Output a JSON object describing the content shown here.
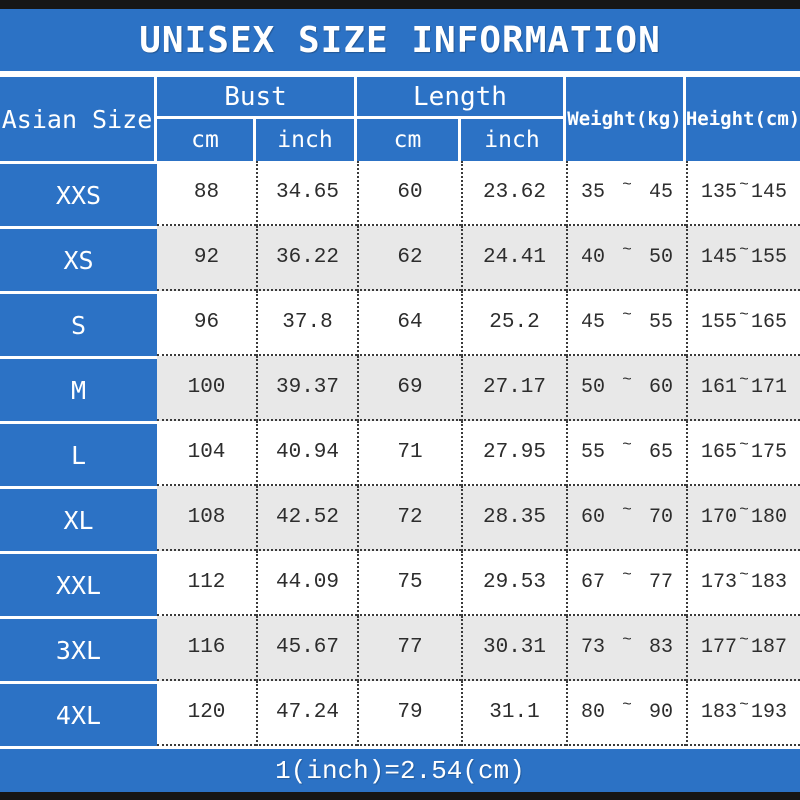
{
  "title": "UNISEX SIZE INFORMATION",
  "footer_note": "1(inch)=2.54(cm)",
  "colors": {
    "blue": "#2c72c5",
    "alt_row_gray": "#e8e8e8",
    "frame_bar_black": "#161616",
    "text_dark": "#2d2d2d",
    "header_text_white": "#ffffff"
  },
  "header": {
    "size_col": "Asian Size",
    "bust": "Bust",
    "length": "Length",
    "cm": "cm",
    "inch": "inch",
    "weight": "Weight(kg)",
    "height": "Height(cm)",
    "tilde": "~"
  },
  "rows": [
    {
      "size": "XXS",
      "bust_cm": "88",
      "bust_inch": "34.65",
      "length_cm": "60",
      "length_inch": "23.62",
      "weight_min": "35",
      "weight_max": "45",
      "height_min": "135",
      "height_max": "145"
    },
    {
      "size": "XS",
      "bust_cm": "92",
      "bust_inch": "36.22",
      "length_cm": "62",
      "length_inch": "24.41",
      "weight_min": "40",
      "weight_max": "50",
      "height_min": "145",
      "height_max": "155"
    },
    {
      "size": "S",
      "bust_cm": "96",
      "bust_inch": "37.8",
      "length_cm": "64",
      "length_inch": "25.2",
      "weight_min": "45",
      "weight_max": "55",
      "height_min": "155",
      "height_max": "165"
    },
    {
      "size": "M",
      "bust_cm": "100",
      "bust_inch": "39.37",
      "length_cm": "69",
      "length_inch": "27.17",
      "weight_min": "50",
      "weight_max": "60",
      "height_min": "161",
      "height_max": "171"
    },
    {
      "size": "L",
      "bust_cm": "104",
      "bust_inch": "40.94",
      "length_cm": "71",
      "length_inch": "27.95",
      "weight_min": "55",
      "weight_max": "65",
      "height_min": "165",
      "height_max": "175"
    },
    {
      "size": "XL",
      "bust_cm": "108",
      "bust_inch": "42.52",
      "length_cm": "72",
      "length_inch": "28.35",
      "weight_min": "60",
      "weight_max": "70",
      "height_min": "170",
      "height_max": "180"
    },
    {
      "size": "XXL",
      "bust_cm": "112",
      "bust_inch": "44.09",
      "length_cm": "75",
      "length_inch": "29.53",
      "weight_min": "67",
      "weight_max": "77",
      "height_min": "173",
      "height_max": "183"
    },
    {
      "size": "3XL",
      "bust_cm": "116",
      "bust_inch": "45.67",
      "length_cm": "77",
      "length_inch": "30.31",
      "weight_min": "73",
      "weight_max": "83",
      "height_min": "177",
      "height_max": "187"
    },
    {
      "size": "4XL",
      "bust_cm": "120",
      "bust_inch": "47.24",
      "length_cm": "79",
      "length_inch": "31.1",
      "weight_min": "80",
      "weight_max": "90",
      "height_min": "183",
      "height_max": "193"
    }
  ],
  "chart_data": {
    "type": "table",
    "title": "UNISEX SIZE INFORMATION",
    "column_groups": [
      {
        "label": "Asian Size"
      },
      {
        "label": "Bust",
        "sub": [
          "cm",
          "inch"
        ]
      },
      {
        "label": "Length",
        "sub": [
          "cm",
          "inch"
        ]
      },
      {
        "label": "Weight(kg)"
      },
      {
        "label": "Height(cm)"
      }
    ],
    "rows": [
      [
        "XXS",
        88,
        34.65,
        60,
        23.62,
        "35 ~ 45",
        "135 ~ 145"
      ],
      [
        "XS",
        92,
        36.22,
        62,
        24.41,
        "40 ~ 50",
        "145 ~ 155"
      ],
      [
        "S",
        96,
        37.8,
        64,
        25.2,
        "45 ~ 55",
        "155 ~ 165"
      ],
      [
        "M",
        100,
        39.37,
        69,
        27.17,
        "50 ~ 60",
        "161 ~ 171"
      ],
      [
        "L",
        104,
        40.94,
        71,
        27.95,
        "55 ~ 65",
        "165 ~ 175"
      ],
      [
        "XL",
        108,
        42.52,
        72,
        28.35,
        "60 ~ 70",
        "170 ~ 180"
      ],
      [
        "XXL",
        112,
        44.09,
        75,
        29.53,
        "67 ~ 77",
        "173 ~ 183"
      ],
      [
        "3XL",
        116,
        45.67,
        77,
        30.31,
        "73 ~ 83",
        "177 ~ 187"
      ],
      [
        "4XL",
        120,
        47.24,
        79,
        31.1,
        "80 ~ 90",
        "183 ~ 193"
      ]
    ],
    "footnote": "1(inch)=2.54(cm)"
  }
}
